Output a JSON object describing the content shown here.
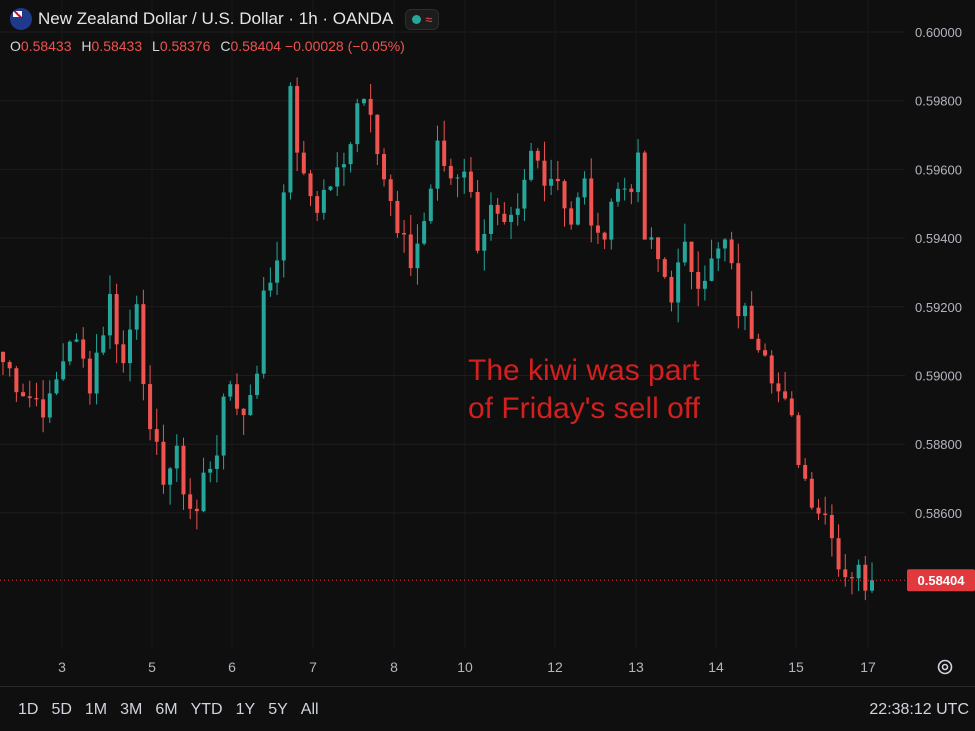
{
  "header": {
    "title": "New Zealand Dollar / U.S. Dollar · 1h · OANDA",
    "status_symbol": "≈",
    "ohlc": [
      {
        "k": "O",
        "v": "0.58433"
      },
      {
        "k": "H",
        "v": "0.58433"
      },
      {
        "k": "L",
        "v": "0.58376"
      },
      {
        "k": "C",
        "v": "0.58404 −0.00028 (−0.05%)"
      }
    ]
  },
  "annotation": {
    "line1": "The kiwi was part",
    "line2": "of Friday's sell off"
  },
  "bottom": {
    "ranges": [
      "1D",
      "5D",
      "1M",
      "3M",
      "6M",
      "YTD",
      "1Y",
      "5Y",
      "All"
    ],
    "clock": "22:38:12 UTC"
  },
  "colors": {
    "up": "#26a69a",
    "down": "#ef5350",
    "annotation": "#d41f1f",
    "price_tag": "#e0393e",
    "background": "#0f0f0f"
  },
  "chart_data": {
    "type": "candlestick",
    "title": "New Zealand Dollar / U.S. Dollar · 1h · OANDA",
    "ylim": [
      0.583,
      0.601
    ],
    "yticks": [
      0.586,
      0.588,
      0.59,
      0.592,
      0.594,
      0.596,
      0.598,
      0.6
    ],
    "ytick_labels": [
      "0.58600",
      "0.58800",
      "0.59000",
      "0.59200",
      "0.59400",
      "0.59600",
      "0.59800",
      "0.60000"
    ],
    "xticks": [
      "3",
      "5",
      "6",
      "7",
      "8",
      "10",
      "12",
      "13",
      "14",
      "15",
      "17"
    ],
    "last_price": 0.58404,
    "last_price_label": "0.58404",
    "path": [
      [
        0,
        0.5904
      ],
      [
        4,
        0.5894
      ],
      [
        7,
        0.5891
      ],
      [
        10,
        0.5912
      ],
      [
        13,
        0.5899
      ],
      [
        16,
        0.5922
      ],
      [
        18,
        0.5903
      ],
      [
        20,
        0.5924
      ],
      [
        22,
        0.588
      ],
      [
        24,
        0.5872
      ],
      [
        26,
        0.5875
      ],
      [
        28,
        0.5862
      ],
      [
        29,
        0.586
      ],
      [
        30,
        0.587
      ],
      [
        32,
        0.588
      ],
      [
        34,
        0.5898
      ],
      [
        36,
        0.5888
      ],
      [
        38,
        0.5904
      ],
      [
        39,
        0.5922
      ],
      [
        41,
        0.5935
      ],
      [
        43,
        0.598
      ],
      [
        45,
        0.5955
      ],
      [
        47,
        0.595
      ],
      [
        49,
        0.5956
      ],
      [
        51,
        0.596
      ],
      [
        53,
        0.5982
      ],
      [
        55,
        0.598
      ],
      [
        57,
        0.5958
      ],
      [
        59,
        0.594
      ],
      [
        61,
        0.5933
      ],
      [
        63,
        0.5945
      ],
      [
        65,
        0.5965
      ],
      [
        67,
        0.5958
      ],
      [
        69,
        0.5962
      ],
      [
        71,
        0.594
      ],
      [
        73,
        0.5947
      ],
      [
        75,
        0.594
      ],
      [
        77,
        0.5945
      ],
      [
        79,
        0.5964
      ],
      [
        81,
        0.596
      ],
      [
        83,
        0.5958
      ],
      [
        85,
        0.5945
      ],
      [
        87,
        0.5955
      ],
      [
        89,
        0.5937
      ],
      [
        91,
        0.5952
      ],
      [
        93,
        0.5955
      ],
      [
        95,
        0.596
      ],
      [
        96,
        0.594
      ],
      [
        98,
        0.5933
      ],
      [
        100,
        0.5925
      ],
      [
        102,
        0.5935
      ],
      [
        104,
        0.593
      ],
      [
        106,
        0.5932
      ],
      [
        108,
        0.5938
      ],
      [
        110,
        0.592
      ],
      [
        112,
        0.5914
      ],
      [
        114,
        0.591
      ],
      [
        116,
        0.5895
      ],
      [
        118,
        0.5885
      ],
      [
        120,
        0.587
      ],
      [
        122,
        0.5862
      ],
      [
        124,
        0.5857
      ],
      [
        125,
        0.5845
      ],
      [
        127,
        0.5843
      ],
      [
        129,
        0.5841
      ],
      [
        130,
        0.584
      ]
    ]
  }
}
